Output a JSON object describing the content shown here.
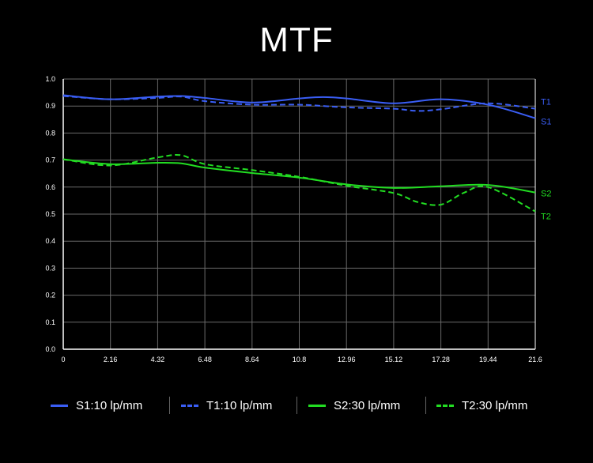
{
  "title": "MTF",
  "colors": {
    "blue": "#3a5ef5",
    "green": "#22dd22",
    "grid": "#6a6a6a",
    "background": "#000000"
  },
  "chart_data": {
    "type": "line",
    "title": "MTF",
    "xlabel": "",
    "ylabel": "",
    "xlim": [
      0,
      21.6
    ],
    "ylim": [
      0,
      1.0
    ],
    "x_ticks": [
      "0",
      "2.16",
      "4.32",
      "6.48",
      "8.64",
      "10.8",
      "12.96",
      "15.12",
      "17.28",
      "19.44",
      "21.6"
    ],
    "y_ticks": [
      "0.0",
      "0.1",
      "0.2",
      "0.3",
      "0.4",
      "0.5",
      "0.6",
      "0.7",
      "0.8",
      "0.9",
      "1.0"
    ],
    "grid": true,
    "series": [
      {
        "name": "S1:10 lp/mm",
        "end_label": "S1",
        "color": "#3a5ef5",
        "style": "solid",
        "x": [
          0,
          2.16,
          4.32,
          5.4,
          6.48,
          8.64,
          10.8,
          11.88,
          12.96,
          15.12,
          17.28,
          19.44,
          21.6
        ],
        "y": [
          0.94,
          0.925,
          0.935,
          0.937,
          0.93,
          0.913,
          0.928,
          0.933,
          0.928,
          0.91,
          0.925,
          0.905,
          0.855
        ]
      },
      {
        "name": "T1:10 lp/mm",
        "end_label": "T1",
        "color": "#3a5ef5",
        "style": "dashed",
        "x": [
          0,
          2.16,
          4.32,
          5.4,
          6.48,
          8.64,
          10.8,
          12.96,
          15.12,
          16.2,
          17.28,
          19.44,
          21.6
        ],
        "y": [
          0.937,
          0.925,
          0.93,
          0.935,
          0.918,
          0.905,
          0.905,
          0.895,
          0.89,
          0.882,
          0.888,
          0.91,
          0.89
        ]
      },
      {
        "name": "S2:30 lp/mm",
        "end_label": "S2",
        "color": "#22dd22",
        "style": "solid",
        "x": [
          0,
          2.16,
          4.32,
          5.4,
          6.48,
          8.64,
          10.8,
          12.96,
          15.12,
          17.28,
          19.44,
          21.6
        ],
        "y": [
          0.703,
          0.685,
          0.69,
          0.688,
          0.672,
          0.652,
          0.635,
          0.61,
          0.597,
          0.603,
          0.608,
          0.58
        ]
      },
      {
        "name": "T2:30 lp/mm",
        "end_label": "T2",
        "color": "#22dd22",
        "style": "dashed",
        "x": [
          0,
          2.16,
          4.32,
          5.4,
          6.48,
          8.64,
          10.8,
          12.96,
          15.12,
          16.2,
          17.28,
          18.36,
          19.44,
          21.6
        ],
        "y": [
          0.703,
          0.68,
          0.71,
          0.718,
          0.685,
          0.663,
          0.638,
          0.605,
          0.578,
          0.545,
          0.535,
          0.58,
          0.6,
          0.51
        ]
      }
    ]
  },
  "legend": [
    {
      "label": "S1:10 lp/mm",
      "color": "#3a5ef5",
      "style": "solid"
    },
    {
      "label": "T1:10 lp/mm",
      "color": "#3a5ef5",
      "style": "dashed"
    },
    {
      "label": "S2:30 lp/mm",
      "color": "#22dd22",
      "style": "solid"
    },
    {
      "label": "T2:30 lp/mm",
      "color": "#22dd22",
      "style": "dashed"
    }
  ]
}
